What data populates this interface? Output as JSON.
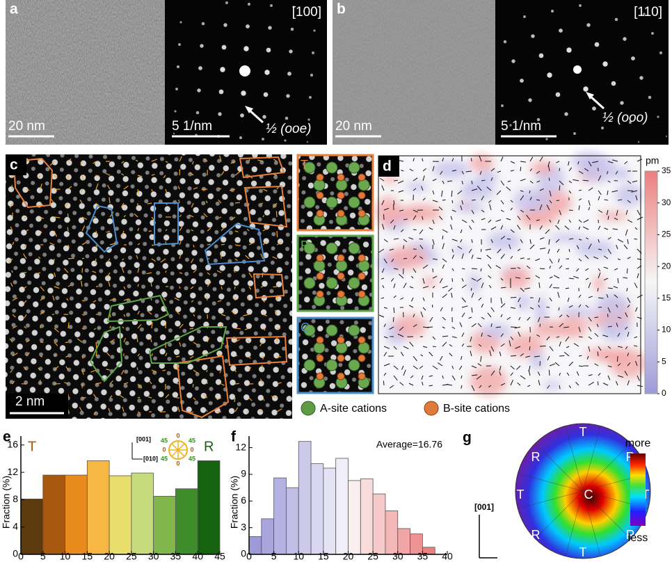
{
  "panels": {
    "a": {
      "label": "a",
      "scale_left": "20 nm",
      "scale_right": "5 1/nm",
      "zone": "[100]",
      "arrow_label": "½ (ooe)"
    },
    "b": {
      "label": "b",
      "scale_left": "20 nm",
      "scale_right": "5 1/nm",
      "zone": "[110]",
      "arrow_label": "½ (ooo)"
    },
    "c": {
      "label": "c",
      "scale": "2 nm",
      "insets": [
        "T",
        "R",
        "C"
      ],
      "legend": [
        "A-site cations",
        "B-site cations"
      ]
    },
    "d": {
      "label": "d",
      "colorbar_label": "pm",
      "colorbar_ticks": [
        0,
        5,
        10,
        15,
        20,
        25,
        30,
        35
      ]
    },
    "g": {
      "label": "g",
      "labels": [
        "T",
        "R",
        "R",
        "T",
        "C",
        "T",
        "R",
        "R",
        "T"
      ],
      "axis": "[001]",
      "more": "more",
      "less": "less"
    }
  },
  "chart_data": [
    {
      "type": "histogram",
      "label": "e",
      "y_label": "Fraction (%)",
      "bins": [
        0,
        5,
        10,
        15,
        20,
        25,
        30,
        35,
        40,
        45
      ],
      "values": [
        8.1,
        11.6,
        11.6,
        13.7,
        11.5,
        11.9,
        8.5,
        9.6,
        13.7
      ],
      "colors": [
        "#5c3a0e",
        "#a9580f",
        "#e88a1c",
        "#f6b843",
        "#e9dd6c",
        "#c6dc7c",
        "#80b64b",
        "#3e8d2a",
        "#15620f"
      ],
      "xlim": [
        0,
        45
      ],
      "xticks": [
        0,
        5,
        10,
        15,
        20,
        25,
        30,
        35,
        40,
        45
      ],
      "ylim": [
        0,
        17.3
      ],
      "yticks": [
        0,
        4,
        8,
        12,
        16
      ],
      "annotations": [
        "T",
        "R",
        "[001]",
        "[010]"
      ],
      "compass_labels": [
        "0",
        "45",
        "45",
        "0",
        "0",
        "45",
        "45",
        "0"
      ]
    },
    {
      "type": "histogram",
      "label": "f",
      "y_label": "Fraction (%)",
      "annotation": "Average=16.76",
      "bins": [
        0,
        2.5,
        5,
        7.5,
        10,
        12.5,
        15,
        17.5,
        20,
        22.5,
        25,
        27.5,
        30,
        32.5,
        35,
        37.5
      ],
      "values": [
        2.0,
        4.0,
        8.6,
        7.5,
        12.7,
        10.2,
        9.7,
        10.8,
        8.3,
        8.5,
        6.8,
        4.9,
        2.9,
        2.3,
        0.8
      ],
      "colors": [
        "#9e9ad8",
        "#aaa6dc",
        "#b5b2e1",
        "#c1bee6",
        "#ccc9eb",
        "#d8d6f0",
        "#e4e2f5",
        "#efeef9",
        "#fbeeee",
        "#f8dcdc",
        "#f6caca",
        "#f3b7b7",
        "#f1a5a5",
        "#ee9393",
        "#ec8181"
      ],
      "xlim": [
        0,
        40
      ],
      "xticks": [
        0,
        5,
        10,
        15,
        20,
        25,
        30,
        35,
        40
      ],
      "ylim": [
        0,
        13.3
      ],
      "yticks": [
        0,
        3,
        6,
        9,
        12
      ]
    }
  ]
}
